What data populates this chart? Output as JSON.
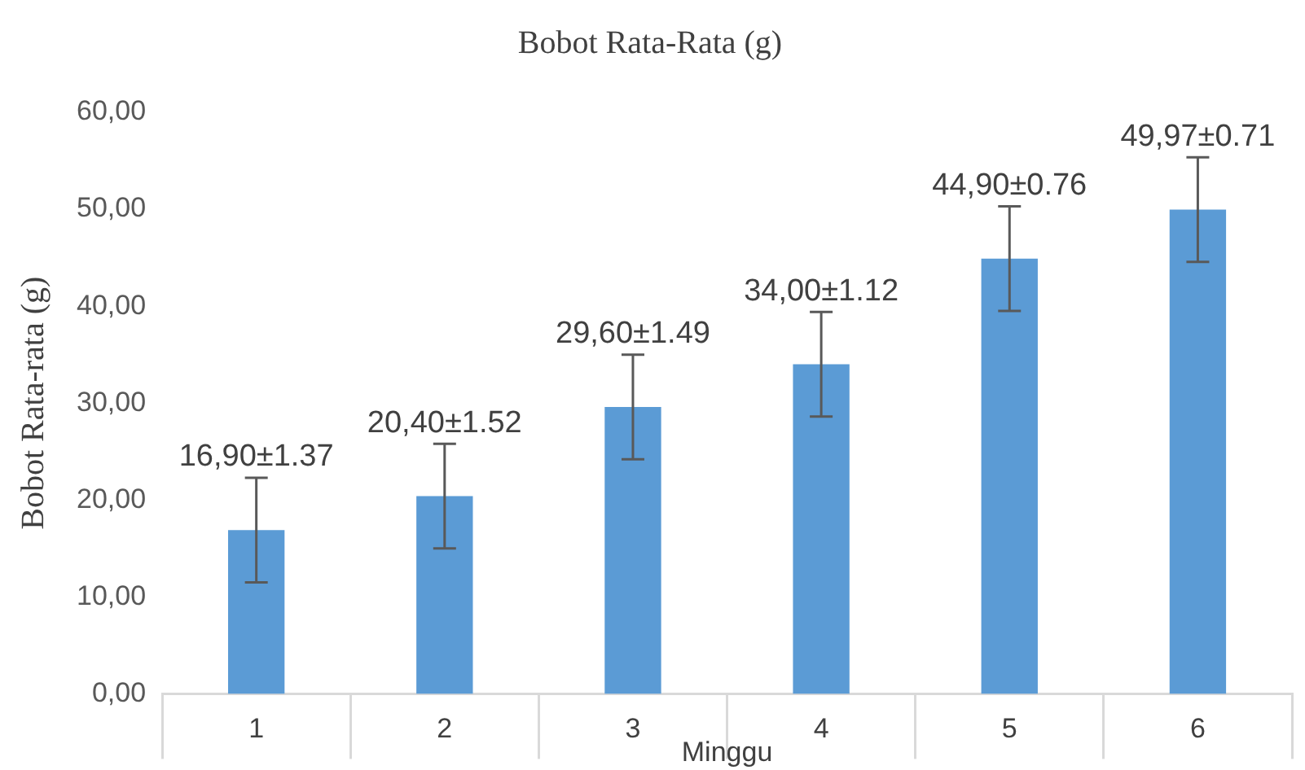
{
  "chart_data": {
    "type": "bar",
    "title": "Bobot Rata-Rata (g)",
    "xlabel": "Minggu",
    "ylabel": "Bobot Rata-rata (g)",
    "categories": [
      "1",
      "2",
      "3",
      "4",
      "5",
      "6"
    ],
    "values": [
      16.9,
      20.4,
      29.6,
      34.0,
      44.9,
      49.97
    ],
    "errors": [
      5.4,
      5.4,
      5.4,
      5.4,
      5.4,
      5.4
    ],
    "value_labels": [
      "16,90±1.37",
      "20,40±1.52",
      "29,60±1.49",
      "34,00±1.12",
      "44,90±0.76",
      "49,97±0.71"
    ],
    "color": "#5b9bd5",
    "ylim": [
      0,
      60
    ],
    "yticks": [
      {
        "value": 0,
        "label": "0,00"
      },
      {
        "value": 10,
        "label": "10,00"
      },
      {
        "value": 20,
        "label": "20,00"
      },
      {
        "value": 30,
        "label": "30,00"
      },
      {
        "value": 40,
        "label": "40,00"
      },
      {
        "value": 50,
        "label": "50,00"
      },
      {
        "value": 60,
        "label": "60,00"
      }
    ],
    "grid": false,
    "legend": false
  }
}
